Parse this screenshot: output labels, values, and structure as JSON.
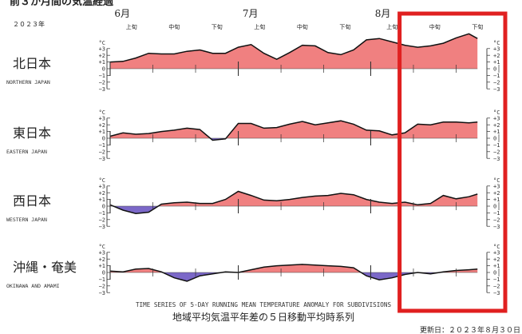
{
  "header": {
    "banner": "前３か月間の気温経過",
    "year": "２０２３年"
  },
  "chart_data": {
    "type": "area",
    "title": "地域平均気温平年差の５日移動平均時系列",
    "subtitle": "TIME SERIES OF 5-DAY RUNNING MEAN TEMPERATURE ANOMALY FOR SUBDIVISIONS",
    "updated": "更新日：２０２３年８月３０日",
    "unit": "°C",
    "months": [
      "6月",
      "7月",
      "8月"
    ],
    "dekads": [
      "上旬",
      "中旬",
      "下旬"
    ],
    "yticks": [
      "+3",
      "+2",
      "+1",
      "0",
      "−1",
      "−2",
      "−3"
    ],
    "ylim": [
      -3,
      3
    ],
    "x": {
      "start": "2023-06-01",
      "end": "2023-08-26"
    },
    "highlight": {
      "from": "2023-08-10",
      "to": "2023-08-31",
      "color": "#e02020"
    },
    "colors": {
      "positive": "#f08080",
      "negative": "#7b68c8",
      "line": "#111111"
    },
    "regions": [
      {
        "name_jp": "北日本",
        "name_en": "NORTHERN JAPAN",
        "days": [
          0,
          3,
          6,
          9,
          12,
          15,
          18,
          21,
          24,
          27,
          30,
          33,
          36,
          39,
          42,
          45,
          48,
          51,
          54,
          57,
          60,
          63,
          66,
          69,
          72,
          75,
          78,
          81,
          84,
          86
        ],
        "values": [
          1.0,
          1.1,
          1.6,
          2.3,
          2.2,
          2.2,
          2.6,
          2.8,
          2.3,
          2.3,
          3.2,
          3.6,
          2.3,
          1.4,
          2.4,
          3.5,
          3.4,
          2.4,
          2.1,
          2.8,
          4.3,
          4.5,
          4.0,
          3.5,
          3.2,
          3.4,
          3.8,
          4.6,
          5.2,
          4.5
        ]
      },
      {
        "name_jp": "東日本",
        "name_en": "EASTERN JAPAN",
        "days": [
          0,
          3,
          6,
          9,
          12,
          15,
          18,
          21,
          24,
          27,
          30,
          33,
          36,
          39,
          42,
          45,
          48,
          51,
          54,
          57,
          60,
          63,
          66,
          69,
          72,
          75,
          78,
          81,
          84,
          86
        ],
        "values": [
          0.3,
          0.8,
          0.6,
          0.7,
          1.0,
          1.2,
          1.5,
          1.3,
          -0.3,
          -0.1,
          2.2,
          2.2,
          1.5,
          1.6,
          2.1,
          2.5,
          2.0,
          2.3,
          2.6,
          2.1,
          1.2,
          1.1,
          0.5,
          0.8,
          2.1,
          2.0,
          2.4,
          2.4,
          2.3,
          2.4
        ]
      },
      {
        "name_jp": "西日本",
        "name_en": "WESTERN JAPAN",
        "days": [
          0,
          3,
          6,
          9,
          12,
          15,
          18,
          21,
          24,
          27,
          30,
          33,
          36,
          39,
          42,
          45,
          48,
          51,
          54,
          57,
          60,
          63,
          66,
          69,
          72,
          75,
          78,
          81,
          84,
          86
        ],
        "values": [
          0.2,
          -0.6,
          -1.1,
          -0.9,
          0.3,
          0.5,
          0.6,
          0.4,
          0.4,
          1.0,
          2.2,
          1.6,
          0.9,
          0.8,
          1.0,
          1.3,
          1.5,
          1.6,
          1.9,
          1.7,
          1.0,
          0.6,
          0.4,
          0.6,
          0.2,
          0.4,
          1.6,
          1.1,
          1.4,
          1.8
        ]
      },
      {
        "name_jp": "沖縄・奄美",
        "name_en": "OKINAWA AND AMAMI",
        "days": [
          0,
          3,
          6,
          9,
          12,
          15,
          18,
          21,
          24,
          27,
          30,
          33,
          36,
          39,
          42,
          45,
          48,
          51,
          54,
          57,
          60,
          63,
          66,
          69,
          72,
          75,
          78,
          81,
          84,
          86
        ],
        "values": [
          0.2,
          0.1,
          0.5,
          0.6,
          0.1,
          -0.8,
          -1.3,
          -0.5,
          -0.2,
          0.1,
          0.0,
          0.4,
          0.8,
          1.0,
          1.1,
          1.2,
          1.1,
          1.0,
          0.9,
          0.7,
          -0.5,
          -1.1,
          -0.8,
          -0.3,
          0.0,
          -0.2,
          0.1,
          0.3,
          0.4,
          0.5
        ]
      }
    ]
  }
}
